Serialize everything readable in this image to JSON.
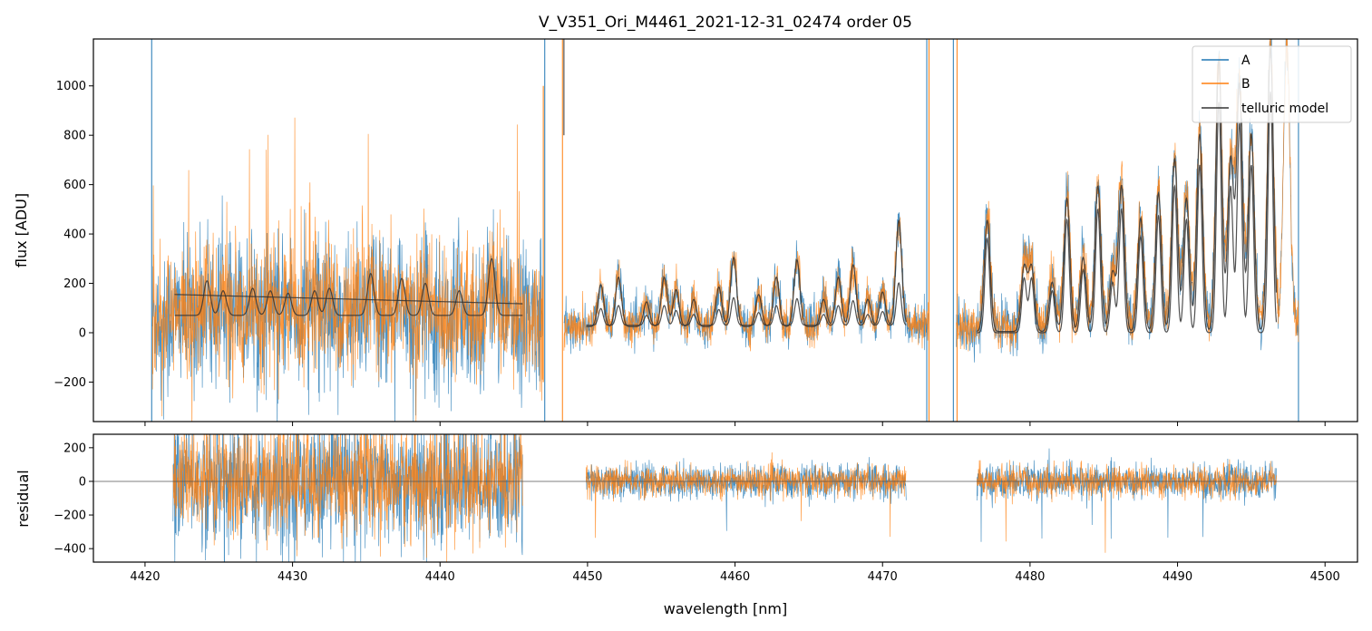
{
  "chart_data": [
    {
      "type": "line",
      "panel": "flux",
      "title": "V_V351_Ori_M4461_2021-12-31_02474  order 05",
      "xlabel": "",
      "ylabel": "flux [ADU]",
      "xlim": [
        4416.5,
        4502.2
      ],
      "ylim": [
        -360,
        1190
      ],
      "yticks": [
        -200,
        0,
        200,
        400,
        600,
        800,
        1000
      ],
      "xticks": [
        4420,
        4430,
        4440,
        4450,
        4460,
        4470,
        4480,
        4490,
        4500
      ],
      "legend_position": "top-right",
      "segments": [
        {
          "x0": 4420.5,
          "x1": 4447.0,
          "noise": 130,
          "baseline": 70
        },
        {
          "x0": 4448.4,
          "x1": 4473.1,
          "noise": 38,
          "baseline": 25
        },
        {
          "x0": 4475.0,
          "x1": 4498.2,
          "noise": 45,
          "baseline": 20
        }
      ],
      "emission_lines": [
        {
          "x": 4450.9,
          "peak": 170
        },
        {
          "x": 4452.1,
          "peak": 200
        },
        {
          "x": 4454.0,
          "peak": 100
        },
        {
          "x": 4455.2,
          "peak": 200
        },
        {
          "x": 4456.0,
          "peak": 150
        },
        {
          "x": 4457.2,
          "peak": 110
        },
        {
          "x": 4458.9,
          "peak": 160
        },
        {
          "x": 4459.9,
          "peak": 280
        },
        {
          "x": 4461.6,
          "peak": 130
        },
        {
          "x": 4462.8,
          "peak": 200
        },
        {
          "x": 4464.2,
          "peak": 270
        },
        {
          "x": 4466.0,
          "peak": 110
        },
        {
          "x": 4467.0,
          "peak": 200
        },
        {
          "x": 4468.0,
          "peak": 250
        },
        {
          "x": 4469.0,
          "peak": 110
        },
        {
          "x": 4470.0,
          "peak": 140
        },
        {
          "x": 4471.1,
          "peak": 430
        },
        {
          "x": 4477.1,
          "peak": 450
        },
        {
          "x": 4479.6,
          "peak": 260
        },
        {
          "x": 4480.1,
          "peak": 260
        },
        {
          "x": 4481.5,
          "peak": 200
        },
        {
          "x": 4482.5,
          "peak": 540
        },
        {
          "x": 4483.6,
          "peak": 300
        },
        {
          "x": 4484.6,
          "peak": 590
        },
        {
          "x": 4485.6,
          "peak": 240
        },
        {
          "x": 4486.2,
          "peak": 590
        },
        {
          "x": 4487.5,
          "peak": 460
        },
        {
          "x": 4488.7,
          "peak": 560
        },
        {
          "x": 4489.8,
          "peak": 700
        },
        {
          "x": 4490.6,
          "peak": 540
        },
        {
          "x": 4491.5,
          "peak": 800
        },
        {
          "x": 4492.8,
          "peak": 1100
        },
        {
          "x": 4493.6,
          "peak": 700
        },
        {
          "x": 4494.2,
          "peak": 1000
        },
        {
          "x": 4495.0,
          "peak": 800
        },
        {
          "x": 4496.3,
          "peak": 1150
        },
        {
          "x": 4497.4,
          "peak": 1150
        }
      ],
      "left_model_bumps": [
        {
          "x": 4424.2,
          "peak": 140
        },
        {
          "x": 4425.3,
          "peak": 100
        },
        {
          "x": 4427.3,
          "peak": 110
        },
        {
          "x": 4428.5,
          "peak": 100
        },
        {
          "x": 4429.7,
          "peak": 90
        },
        {
          "x": 4431.5,
          "peak": 100
        },
        {
          "x": 4432.5,
          "peak": 110
        },
        {
          "x": 4435.3,
          "peak": 170
        },
        {
          "x": 4437.4,
          "peak": 150
        },
        {
          "x": 4439.0,
          "peak": 130
        },
        {
          "x": 4441.3,
          "peak": 100
        },
        {
          "x": 4443.5,
          "peak": 230
        }
      ],
      "series": [
        {
          "name": "A",
          "color": "#1f77b4"
        },
        {
          "name": "B",
          "color": "#ff7f0e"
        },
        {
          "name": "telluric model",
          "color": "#333333"
        }
      ]
    },
    {
      "type": "line",
      "panel": "residual",
      "title": "",
      "xlabel": "wavelength [nm]",
      "ylabel": "residual",
      "xlim": [
        4416.5,
        4502.2
      ],
      "ylim": [
        -480,
        280
      ],
      "yticks": [
        -400,
        -200,
        0,
        200
      ],
      "xticks": [
        4420,
        4430,
        4440,
        4450,
        4460,
        4470,
        4480,
        4490,
        4500
      ],
      "segments": [
        {
          "x0": 4421.9,
          "x1": 4445.6,
          "noise": 160
        },
        {
          "x0": 4449.9,
          "x1": 4471.6,
          "noise": 45
        },
        {
          "x0": 4476.4,
          "x1": 4496.7,
          "noise": 45
        }
      ],
      "series": [
        {
          "name": "A",
          "color": "#1f77b4"
        },
        {
          "name": "B",
          "color": "#ff7f0e"
        }
      ]
    }
  ]
}
